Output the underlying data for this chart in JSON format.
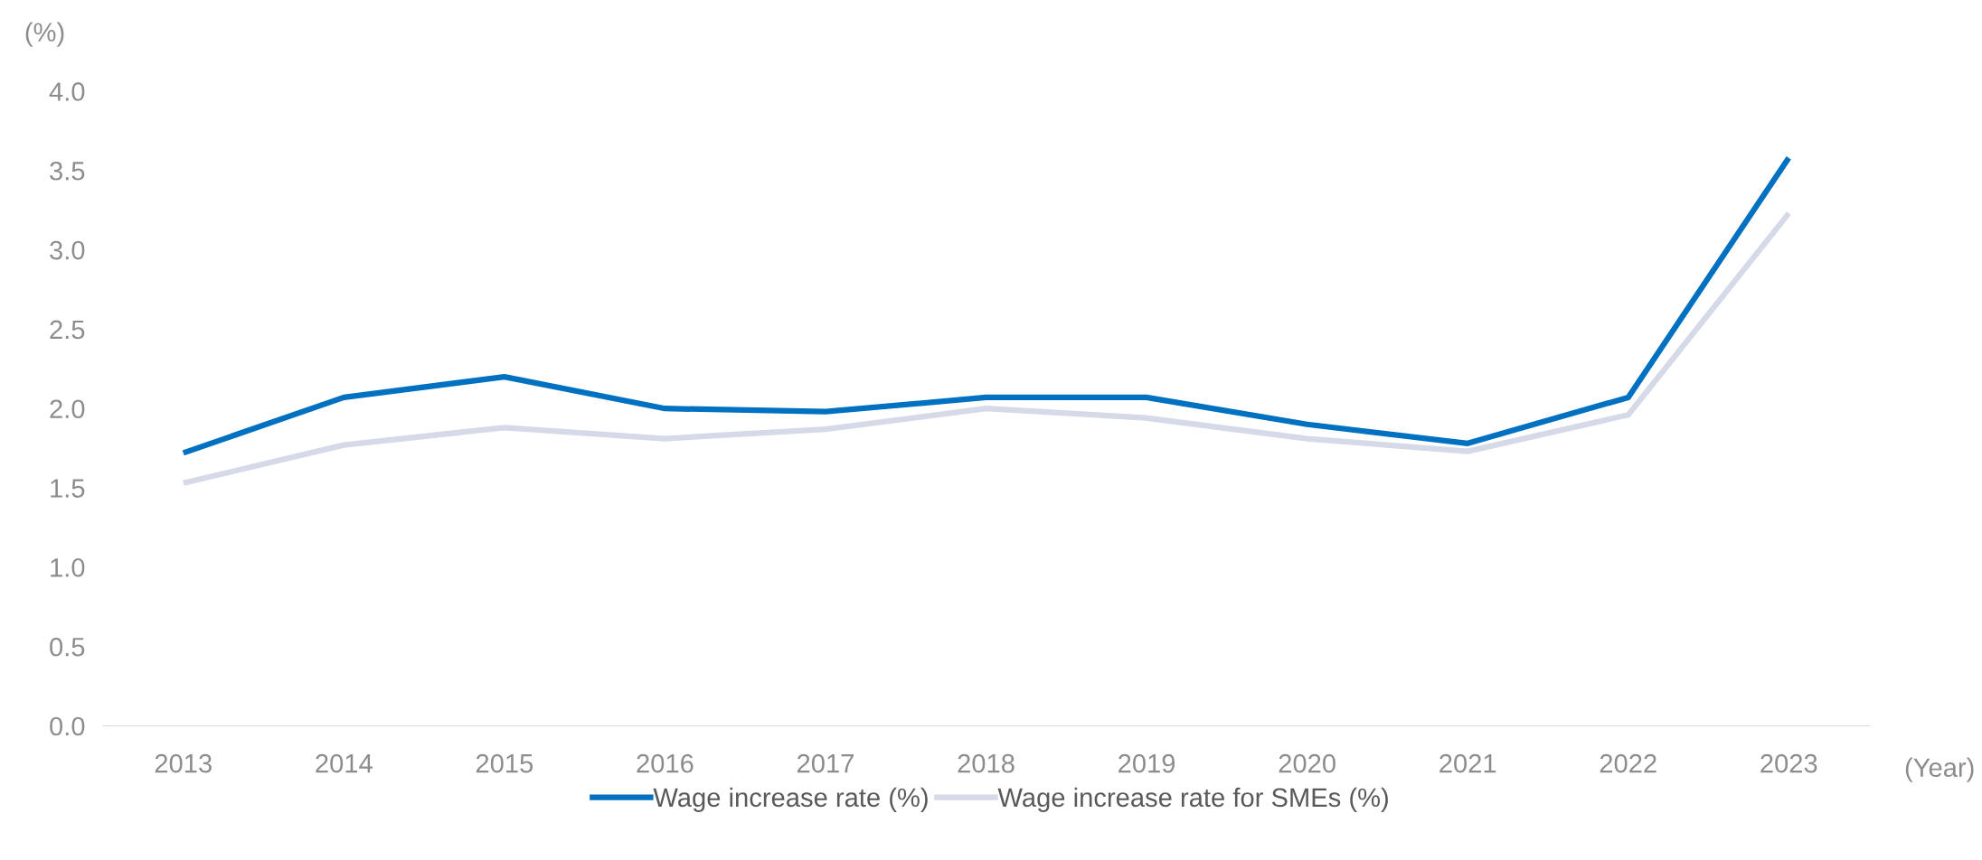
{
  "chart_data": {
    "type": "line",
    "xlabel": "(Year)",
    "ylabel": "(%)",
    "categories": [
      "2013",
      "2014",
      "2015",
      "2016",
      "2017",
      "2018",
      "2019",
      "2020",
      "2021",
      "2022",
      "2023"
    ],
    "series": [
      {
        "name": "Wage increase rate (%)",
        "color": "#0070c0",
        "values": [
          1.72,
          2.07,
          2.2,
          2.0,
          1.98,
          2.07,
          2.07,
          1.9,
          1.78,
          2.07,
          3.58
        ]
      },
      {
        "name": "Wage increase rate for SMEs (%)",
        "color": "#d5d9e8",
        "values": [
          1.53,
          1.77,
          1.88,
          1.81,
          1.87,
          2.0,
          1.94,
          1.81,
          1.73,
          1.96,
          3.23
        ]
      }
    ],
    "ylim": [
      0,
      4
    ],
    "yticks": [
      {
        "value": 0,
        "label": "0.0"
      },
      {
        "value": 0.5,
        "label": "0.5"
      },
      {
        "value": 1,
        "label": "1.0"
      },
      {
        "value": 1.5,
        "label": "1.5"
      },
      {
        "value": 2,
        "label": "2.0"
      },
      {
        "value": 2.5,
        "label": "2.5"
      },
      {
        "value": 3,
        "label": "3.0"
      },
      {
        "value": 3.5,
        "label": "3.5"
      },
      {
        "value": 4,
        "label": "4.0"
      }
    ],
    "grid": false,
    "legend": "bottom",
    "marker": "none",
    "line_style": "solid"
  }
}
